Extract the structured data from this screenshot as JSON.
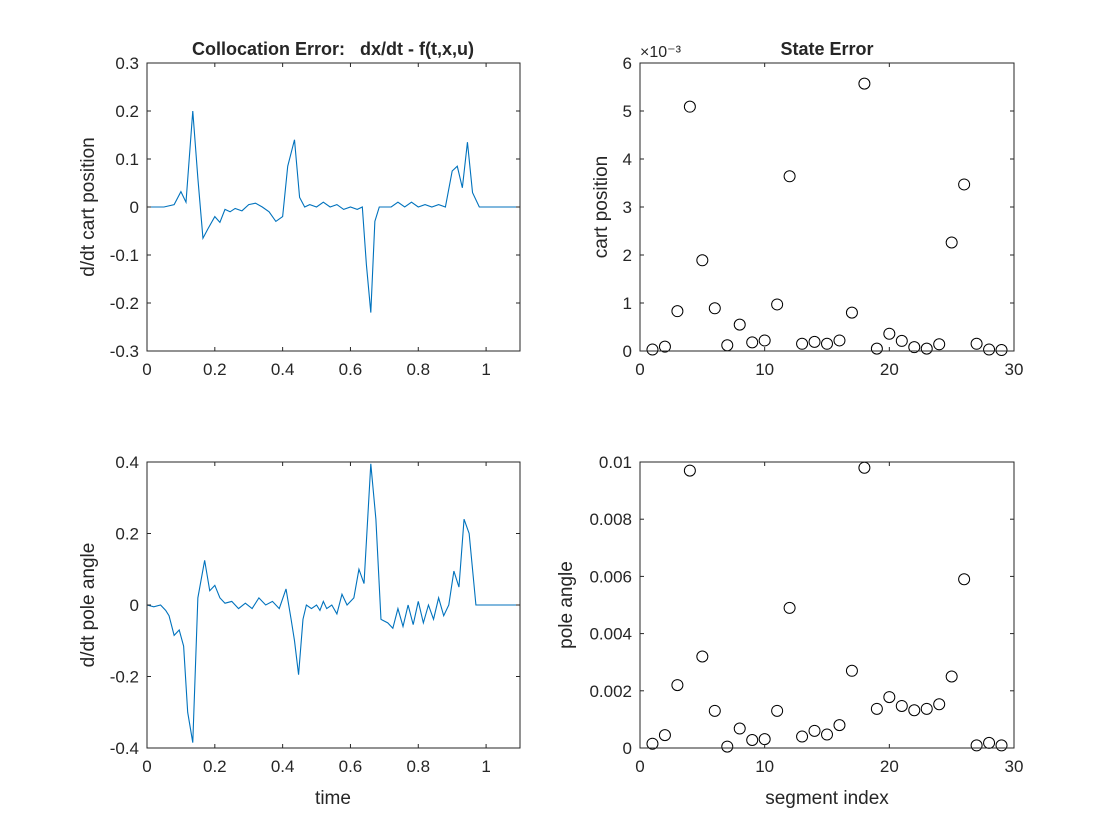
{
  "chart_data": [
    {
      "id": "collocation-cart",
      "type": "line",
      "title": "Collocation Error:   dx/dt - f(t,x,u)",
      "xlabel": "",
      "ylabel": "d/dt cart position",
      "xlim": [
        0,
        1.1
      ],
      "ylim": [
        -0.3,
        0.3
      ],
      "xticks": [
        0,
        0.2,
        0.4,
        0.6,
        0.8,
        1
      ],
      "yticks": [
        -0.3,
        -0.2,
        -0.1,
        0,
        0.1,
        0.2,
        0.3
      ],
      "exponent": "",
      "line_color": "#0072BD",
      "series": [
        {
          "x": [
            0,
            0.05,
            0.08,
            0.1,
            0.115,
            0.135,
            0.15,
            0.165,
            0.18,
            0.2,
            0.215,
            0.23,
            0.245,
            0.26,
            0.28,
            0.3,
            0.32,
            0.34,
            0.36,
            0.38,
            0.4,
            0.415,
            0.435,
            0.45,
            0.465,
            0.48,
            0.5,
            0.52,
            0.54,
            0.56,
            0.58,
            0.6,
            0.62,
            0.635,
            0.647,
            0.66,
            0.672,
            0.685,
            0.7,
            0.72,
            0.74,
            0.76,
            0.78,
            0.8,
            0.82,
            0.84,
            0.86,
            0.88,
            0.9,
            0.915,
            0.93,
            0.945,
            0.96,
            0.98,
            1.0,
            1.1
          ],
          "y": [
            0,
            0,
            0.005,
            0.032,
            0.01,
            0.2,
            0.06,
            -0.065,
            -0.045,
            -0.02,
            -0.032,
            -0.005,
            -0.01,
            -0.003,
            -0.008,
            0.005,
            0.008,
            0.0,
            -0.01,
            -0.03,
            -0.02,
            0.085,
            0.14,
            0.02,
            0.0,
            0.005,
            0.0,
            0.01,
            0.0,
            0.005,
            -0.005,
            0.0,
            -0.005,
            0.0,
            -0.12,
            -0.22,
            -0.03,
            0.0,
            0.0,
            0.0,
            0.01,
            0.0,
            0.01,
            0.0,
            0.005,
            0.0,
            0.005,
            0.0,
            0.075,
            0.085,
            0.04,
            0.135,
            0.03,
            0.0,
            0.0,
            0.0
          ]
        }
      ]
    },
    {
      "id": "state-cart",
      "type": "scatter",
      "title": "State Error",
      "xlabel": "",
      "ylabel": "cart position",
      "xlim": [
        0,
        30
      ],
      "ylim": [
        0,
        0.006
      ],
      "xticks": [
        0,
        10,
        20,
        30
      ],
      "yticks": [
        0,
        0.001,
        0.002,
        0.003,
        0.004,
        0.005,
        0.006
      ],
      "ytick_labels": [
        "0",
        "1",
        "2",
        "3",
        "4",
        "5",
        "6"
      ],
      "exponent": "×10⁻³",
      "series": [
        {
          "x": [
            1,
            2,
            3,
            4,
            5,
            6,
            7,
            8,
            9,
            10,
            11,
            12,
            13,
            14,
            15,
            16,
            17,
            18,
            19,
            20,
            21,
            22,
            23,
            24,
            25,
            26,
            27,
            28,
            29
          ],
          "y": [
            3e-05,
            9e-05,
            0.00083,
            0.00509,
            0.00189,
            0.00089,
            0.00012,
            0.00055,
            0.00018,
            0.00022,
            0.00097,
            0.00364,
            0.00015,
            0.00019,
            0.00015,
            0.00022,
            0.0008,
            0.00557,
            5e-05,
            0.00036,
            0.00021,
            8e-05,
            5e-05,
            0.00014,
            0.00226,
            0.00347,
            0.00015,
            3e-05,
            2e-05
          ]
        }
      ]
    },
    {
      "id": "collocation-pole",
      "type": "line",
      "title": "",
      "xlabel": "time",
      "ylabel": "d/dt pole angle",
      "xlim": [
        0,
        1.1
      ],
      "ylim": [
        -0.4,
        0.4
      ],
      "xticks": [
        0,
        0.2,
        0.4,
        0.6,
        0.8,
        1
      ],
      "yticks": [
        -0.4,
        -0.2,
        0,
        0.2,
        0.4
      ],
      "exponent": "",
      "line_color": "#0072BD",
      "series": [
        {
          "x": [
            0,
            0.02,
            0.04,
            0.055,
            0.065,
            0.08,
            0.095,
            0.108,
            0.12,
            0.135,
            0.15,
            0.17,
            0.185,
            0.2,
            0.215,
            0.23,
            0.25,
            0.27,
            0.29,
            0.31,
            0.33,
            0.35,
            0.37,
            0.39,
            0.41,
            0.425,
            0.435,
            0.447,
            0.46,
            0.47,
            0.485,
            0.5,
            0.51,
            0.52,
            0.53,
            0.545,
            0.56,
            0.575,
            0.59,
            0.61,
            0.625,
            0.64,
            0.66,
            0.675,
            0.69,
            0.71,
            0.725,
            0.74,
            0.755,
            0.77,
            0.785,
            0.8,
            0.815,
            0.83,
            0.845,
            0.86,
            0.875,
            0.89,
            0.905,
            0.92,
            0.935,
            0.95,
            0.97,
            0.99,
            1.01,
            1.1
          ],
          "y": [
            0,
            -0.005,
            0.0,
            -0.015,
            -0.03,
            -0.085,
            -0.07,
            -0.115,
            -0.3,
            -0.385,
            0.02,
            0.125,
            0.04,
            0.055,
            0.02,
            0.005,
            0.01,
            -0.01,
            0.005,
            -0.01,
            0.02,
            0.0,
            0.01,
            -0.01,
            0.045,
            -0.04,
            -0.1,
            -0.195,
            -0.04,
            0.0,
            -0.01,
            0.0,
            -0.015,
            0.01,
            -0.01,
            0.0,
            -0.025,
            0.03,
            0.0,
            0.02,
            0.1,
            0.06,
            0.395,
            0.24,
            -0.04,
            -0.05,
            -0.065,
            -0.01,
            -0.06,
            0.0,
            -0.055,
            0.01,
            -0.05,
            0.0,
            -0.04,
            0.02,
            -0.03,
            0.0,
            0.095,
            0.05,
            0.24,
            0.2,
            0.0,
            0.0,
            0.0,
            0.0
          ]
        }
      ]
    },
    {
      "id": "state-pole",
      "type": "scatter",
      "title": "",
      "xlabel": "segment index",
      "ylabel": "pole angle",
      "xlim": [
        0,
        30
      ],
      "ylim": [
        0,
        0.01
      ],
      "xticks": [
        0,
        10,
        20,
        30
      ],
      "yticks": [
        0,
        0.002,
        0.004,
        0.006,
        0.008,
        0.01
      ],
      "ytick_labels": [
        "0",
        "0.002",
        "0.004",
        "0.006",
        "0.008",
        "0.01"
      ],
      "exponent": "",
      "series": [
        {
          "x": [
            1,
            2,
            3,
            4,
            5,
            6,
            7,
            8,
            9,
            10,
            11,
            12,
            13,
            14,
            15,
            16,
            17,
            18,
            19,
            20,
            21,
            22,
            23,
            24,
            25,
            26,
            27,
            28,
            29
          ],
          "y": [
            0.00015,
            0.00045,
            0.0022,
            0.0097,
            0.0032,
            0.0013,
            5e-05,
            0.00068,
            0.00028,
            0.00031,
            0.0013,
            0.0049,
            0.0004,
            0.0006,
            0.00047,
            0.0008,
            0.0027,
            0.0098,
            0.00137,
            0.00178,
            0.00147,
            0.00132,
            0.00137,
            0.00153,
            0.0025,
            0.0059,
            9e-05,
            0.00018,
            9e-05
          ]
        }
      ]
    }
  ]
}
